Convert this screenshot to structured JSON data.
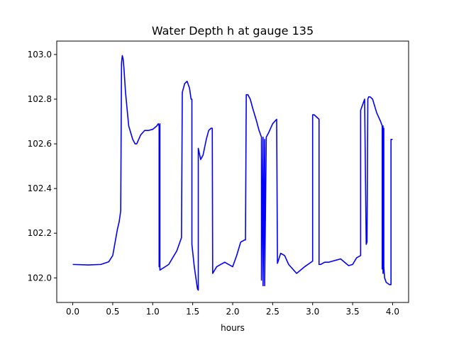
{
  "chart_data": {
    "type": "line",
    "title": "Water Depth h at gauge 135",
    "xlabel": "hours",
    "ylabel": "",
    "xlim": [
      -0.2,
      4.2
    ],
    "ylim": [
      101.89,
      103.06
    ],
    "xticks": [
      0.0,
      0.5,
      1.0,
      1.5,
      2.0,
      2.5,
      3.0,
      3.5,
      4.0
    ],
    "xtick_labels": [
      "0.0",
      "0.5",
      "1.0",
      "1.5",
      "2.0",
      "2.5",
      "3.0",
      "3.5",
      "4.0"
    ],
    "yticks": [
      102.0,
      102.2,
      102.4,
      102.6,
      102.8,
      103.0
    ],
    "ytick_labels": [
      "102.0",
      "102.2",
      "102.4",
      "102.6",
      "102.8",
      "103.0"
    ],
    "grid": false,
    "legend": "none",
    "series": [
      {
        "color": "#0000ff",
        "x": [
          0.0,
          0.2,
          0.35,
          0.45,
          0.5,
          0.53,
          0.56,
          0.58,
          0.6,
          0.61,
          0.615,
          0.62,
          0.63,
          0.64,
          0.66,
          0.7,
          0.75,
          0.78,
          0.8,
          0.85,
          0.9,
          0.95,
          1.0,
          1.05,
          1.07,
          1.08,
          1.08,
          1.09,
          1.09,
          1.2,
          1.3,
          1.36,
          1.37,
          1.4,
          1.43,
          1.46,
          1.48,
          1.49,
          1.49,
          1.52,
          1.56,
          1.57,
          1.57,
          1.6,
          1.63,
          1.67,
          1.7,
          1.73,
          1.745,
          1.75,
          1.75,
          1.8,
          1.9,
          2.0,
          2.05,
          2.1,
          2.15,
          2.16,
          2.17,
          2.19,
          2.22,
          2.25,
          2.3,
          2.33,
          2.35,
          2.36,
          2.36,
          2.38,
          2.38,
          2.4,
          2.4,
          2.42,
          2.42,
          2.45,
          2.5,
          2.55,
          2.56,
          2.6,
          2.65,
          2.7,
          2.8,
          2.9,
          3.0,
          3.0,
          3.02,
          3.05,
          3.08,
          3.08,
          3.1,
          3.15,
          3.2,
          3.25,
          3.3,
          3.35,
          3.4,
          3.45,
          3.5,
          3.55,
          3.6,
          3.6,
          3.63,
          3.65,
          3.67,
          3.68,
          3.69,
          3.7,
          3.72,
          3.75,
          3.8,
          3.85,
          3.87,
          3.87,
          3.88,
          3.88,
          3.89,
          3.89,
          3.9,
          3.92,
          3.96,
          3.98,
          3.98,
          4.0
        ],
        "y": [
          102.06,
          102.058,
          102.06,
          102.072,
          102.1,
          102.16,
          102.22,
          102.25,
          102.3,
          102.96,
          102.98,
          102.995,
          102.98,
          102.94,
          102.83,
          102.68,
          102.62,
          102.6,
          102.6,
          102.64,
          102.66,
          102.66,
          102.665,
          102.68,
          102.69,
          102.68,
          102.05,
          102.69,
          102.035,
          102.06,
          102.12,
          102.18,
          102.83,
          102.87,
          102.88,
          102.85,
          102.8,
          102.8,
          102.15,
          102.05,
          101.95,
          101.945,
          102.58,
          102.53,
          102.55,
          102.62,
          102.66,
          102.67,
          102.67,
          102.02,
          102.02,
          102.05,
          102.07,
          102.05,
          102.1,
          102.16,
          102.17,
          102.17,
          102.82,
          102.82,
          102.8,
          102.76,
          102.7,
          102.66,
          102.64,
          102.63,
          101.99,
          102.63,
          101.965,
          102.62,
          101.965,
          102.62,
          102.63,
          102.65,
          102.69,
          102.71,
          102.065,
          102.11,
          102.1,
          102.06,
          102.02,
          102.05,
          102.075,
          102.73,
          102.73,
          102.72,
          102.71,
          102.06,
          102.06,
          102.07,
          102.07,
          102.075,
          102.08,
          102.085,
          102.07,
          102.055,
          102.06,
          102.09,
          102.1,
          102.75,
          102.78,
          102.8,
          102.15,
          102.16,
          102.8,
          102.81,
          102.81,
          102.8,
          102.74,
          102.7,
          102.68,
          102.04,
          102.68,
          102.02,
          102.67,
          102.05,
          102.0,
          101.98,
          101.97,
          101.97,
          102.62,
          102.62
        ]
      }
    ]
  }
}
